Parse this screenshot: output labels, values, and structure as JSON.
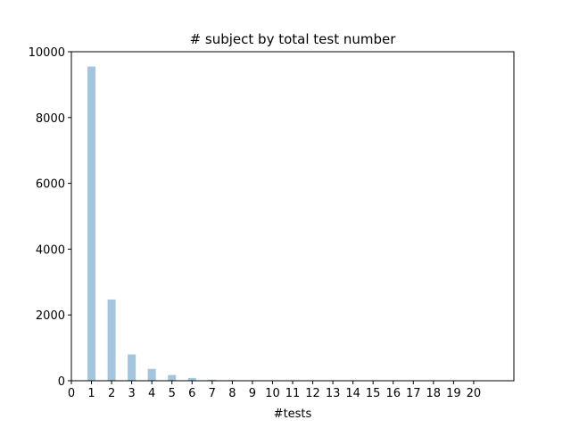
{
  "chart_data": {
    "type": "bar",
    "title": "# subject by total test number",
    "xlabel": "#tests",
    "ylabel": "",
    "x": [
      1,
      2,
      3,
      4,
      5,
      6,
      7,
      8,
      9,
      10,
      11,
      12,
      13,
      14,
      15,
      16,
      17,
      18,
      19,
      20
    ],
    "values": [
      9550,
      2470,
      800,
      360,
      175,
      85,
      30,
      18,
      10,
      6,
      4,
      3,
      2,
      1,
      1,
      1,
      0,
      0,
      0,
      0
    ],
    "xlim": [
      0,
      22
    ],
    "ylim": [
      0,
      10000
    ],
    "xticks": [
      0,
      1,
      2,
      3,
      4,
      5,
      6,
      7,
      8,
      9,
      10,
      11,
      12,
      13,
      14,
      15,
      16,
      17,
      18,
      19,
      20
    ],
    "yticks": [
      0,
      2000,
      4000,
      6000,
      8000,
      10000
    ],
    "bar_color": "#a3c5de",
    "grid": false,
    "legend": "none"
  }
}
